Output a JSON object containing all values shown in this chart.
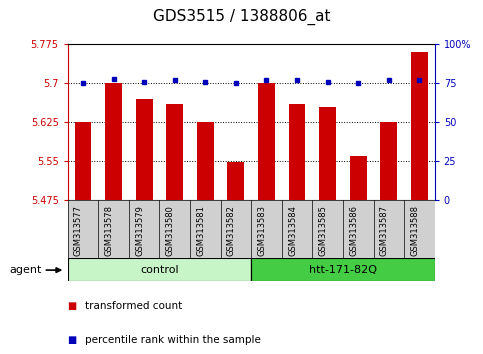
{
  "title": "GDS3515 / 1388806_at",
  "samples": [
    "GSM313577",
    "GSM313578",
    "GSM313579",
    "GSM313580",
    "GSM313581",
    "GSM313582",
    "GSM313583",
    "GSM313584",
    "GSM313585",
    "GSM313586",
    "GSM313587",
    "GSM313588"
  ],
  "bar_values": [
    5.625,
    5.7,
    5.67,
    5.66,
    5.625,
    5.548,
    5.7,
    5.66,
    5.655,
    5.56,
    5.625,
    5.76
  ],
  "percentile_values": [
    75,
    78,
    76,
    77,
    76,
    75,
    77,
    77,
    76,
    75,
    77,
    77
  ],
  "ylim_left": [
    5.475,
    5.775
  ],
  "ylim_right": [
    0,
    100
  ],
  "yticks_left": [
    5.475,
    5.55,
    5.625,
    5.7,
    5.775
  ],
  "yticks_right": [
    0,
    25,
    50,
    75,
    100
  ],
  "bar_color": "#cc0000",
  "dot_color": "#0000bb",
  "bar_width": 0.55,
  "control_color": "#c8f5c8",
  "htt_color": "#44cc44",
  "sample_box_color": "#d0d0d0",
  "title_fontsize": 11,
  "tick_fontsize": 7,
  "label_fontsize": 8,
  "sample_fontsize": 6,
  "group_fontsize": 8,
  "legend_fontsize": 7.5,
  "grid_yticks": [
    5.55,
    5.625,
    5.7
  ]
}
